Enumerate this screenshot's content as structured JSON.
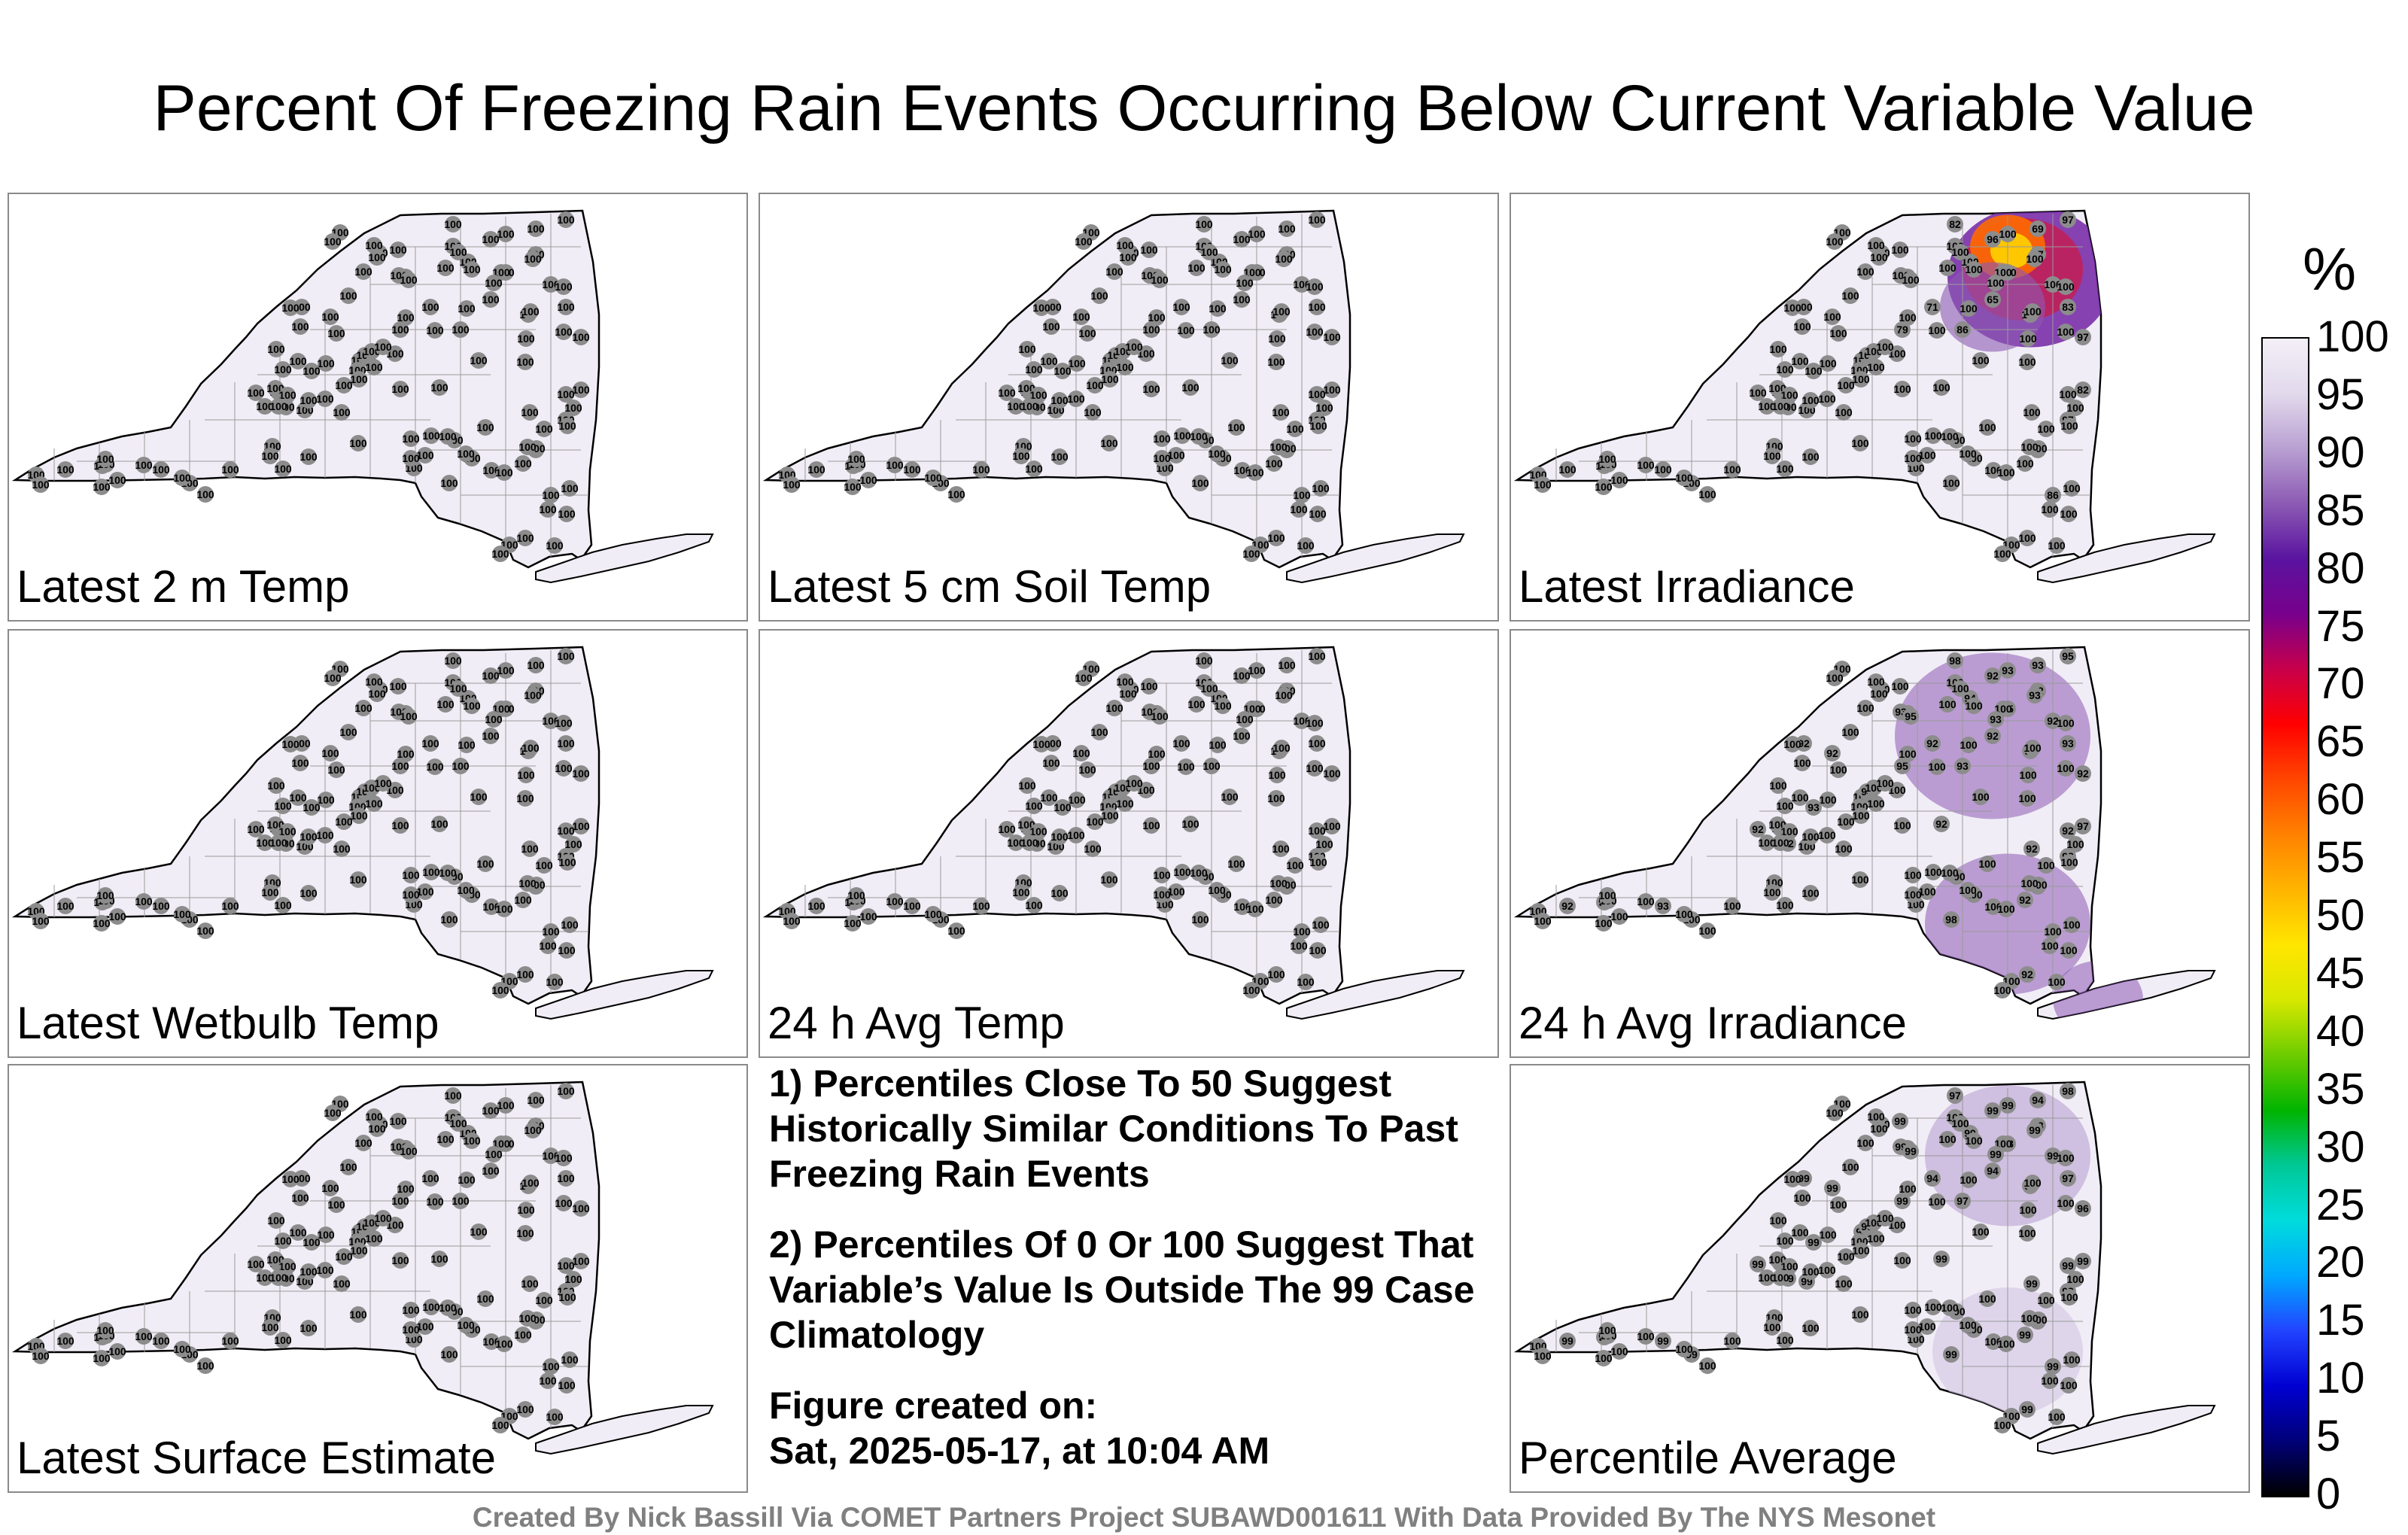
{
  "title": "Percent Of Freezing Rain Events Occurring Below Current Variable Value",
  "panels": [
    {
      "label": "Latest 2 m Temp",
      "values": [
        100,
        100,
        100,
        100,
        100,
        100,
        100,
        100,
        100,
        100,
        100,
        100,
        100,
        100,
        100,
        100,
        100,
        100,
        100,
        100,
        100,
        100,
        100,
        100,
        100,
        100,
        100,
        100,
        100,
        100,
        100,
        100,
        100,
        100,
        100,
        100,
        100,
        100,
        100,
        100,
        100,
        100,
        100,
        100,
        100,
        100,
        100,
        100,
        100,
        100,
        100,
        100,
        100,
        100,
        100,
        100,
        100,
        100,
        100,
        100,
        100,
        100,
        100,
        100,
        100,
        100,
        100,
        100,
        100,
        100,
        100,
        100,
        100,
        100,
        100,
        100,
        100,
        100,
        100,
        100,
        100,
        100,
        100,
        100,
        100,
        100,
        100,
        100,
        100,
        100,
        100,
        100,
        100,
        100,
        100,
        100,
        100,
        100,
        100,
        100,
        100,
        100,
        100,
        100,
        100,
        100,
        100,
        100,
        100,
        100,
        100,
        100,
        100,
        100,
        100,
        100,
        100,
        100,
        100,
        100,
        100,
        100,
        100,
        100,
        100,
        100,
        100
      ]
    },
    {
      "label": "Latest 5 cm Soil Temp",
      "values": [
        100,
        100,
        100,
        100,
        100,
        100,
        100,
        100,
        100,
        100,
        100,
        100,
        100,
        100,
        100,
        100,
        100,
        100,
        100,
        100,
        100,
        100,
        100,
        100,
        100,
        100,
        100,
        100,
        100,
        100,
        100,
        100,
        100,
        100,
        100,
        100,
        100,
        100,
        100,
        100,
        100,
        100,
        100,
        100,
        100,
        100,
        100,
        100,
        100,
        100,
        100,
        100,
        100,
        100,
        100,
        100,
        100,
        100,
        100,
        100,
        100,
        100,
        100,
        100,
        100,
        100,
        100,
        100,
        100,
        100,
        100,
        100,
        100,
        100,
        100,
        100,
        100,
        100,
        100,
        100,
        100,
        100,
        100,
        100,
        100,
        100,
        100,
        100,
        100,
        100,
        100,
        100,
        100,
        100,
        100,
        100,
        100,
        100,
        100,
        100,
        100,
        100,
        100,
        100,
        100,
        100,
        100,
        100,
        100,
        100,
        100,
        100,
        100,
        100,
        100,
        100,
        100,
        100,
        100,
        100,
        100,
        100,
        100,
        100,
        100,
        100,
        100
      ]
    },
    {
      "label": "Latest Irradiance",
      "values": [
        82,
        96,
        69,
        97,
        100,
        100,
        57,
        100,
        65,
        100,
        83,
        97,
        86,
        71,
        79,
        82,
        97,
        100,
        86,
        100,
        100,
        100,
        100,
        100,
        100,
        100,
        100,
        100,
        100,
        100,
        100,
        100,
        100,
        100,
        100,
        100,
        100,
        100,
        100,
        100,
        100,
        100,
        100,
        100,
        100,
        100,
        100,
        100,
        100,
        100,
        100,
        100,
        100,
        100,
        100,
        100,
        100,
        100,
        100,
        100,
        100,
        100,
        100,
        100,
        100,
        100,
        100,
        100,
        100,
        100,
        100,
        100,
        100,
        100,
        100,
        100,
        100,
        100,
        100,
        100,
        100,
        100,
        100,
        100,
        100,
        100,
        100,
        100,
        100,
        100,
        100,
        100,
        100,
        100,
        100,
        100,
        100,
        100,
        100,
        100,
        100,
        100,
        100,
        100,
        100,
        100,
        100,
        100,
        100,
        100,
        100,
        100,
        100,
        100,
        100,
        100,
        100,
        100,
        100,
        100,
        100,
        100,
        100,
        100,
        100,
        100,
        100
      ]
    },
    {
      "label": "Latest Wetbulb Temp",
      "values": [
        100,
        100,
        100,
        100,
        100,
        100,
        100,
        100,
        100,
        100,
        100,
        100,
        100,
        100,
        100,
        100,
        100,
        100,
        100,
        100,
        100,
        100,
        100,
        100,
        100,
        100,
        100,
        100,
        100,
        100,
        100,
        100,
        100,
        100,
        100,
        100,
        100,
        100,
        100,
        100,
        100,
        100,
        100,
        100,
        100,
        100,
        100,
        100,
        100,
        100,
        100,
        100,
        100,
        100,
        100,
        100,
        100,
        100,
        100,
        100,
        100,
        100,
        100,
        100,
        100,
        100,
        100,
        100,
        100,
        100,
        100,
        100,
        100,
        100,
        100,
        100,
        100,
        100,
        100,
        100,
        100,
        100,
        100,
        100,
        100,
        100,
        100,
        100,
        100,
        100,
        100,
        100,
        100,
        100,
        100,
        100,
        100,
        100,
        100,
        100,
        100,
        100,
        100,
        100,
        100,
        100,
        100,
        100,
        100,
        100,
        100,
        100,
        100,
        100,
        100,
        100,
        100,
        100,
        100,
        100,
        100,
        100,
        100,
        100,
        100,
        100,
        100
      ]
    },
    {
      "label": "24 h Avg Temp",
      "values": [
        100,
        100,
        100,
        100,
        100,
        100,
        100,
        100,
        100,
        100,
        100,
        100,
        100,
        100,
        100,
        100,
        100,
        100,
        100,
        100,
        100,
        100,
        100,
        100,
        100,
        100,
        100,
        100,
        100,
        100,
        100,
        100,
        100,
        100,
        100,
        100,
        100,
        100,
        100,
        100,
        100,
        100,
        100,
        100,
        100,
        100,
        100,
        100,
        100,
        100,
        100,
        100,
        100,
        100,
        100,
        100,
        100,
        100,
        100,
        100,
        100,
        100,
        100,
        100,
        100,
        100,
        100,
        100,
        100,
        100,
        100,
        100,
        100,
        100,
        100,
        100,
        100,
        100,
        100,
        100,
        100,
        100,
        100,
        100,
        100,
        100,
        100,
        100,
        100,
        100,
        100,
        100,
        100,
        100,
        100,
        100,
        100,
        100,
        100,
        100,
        100,
        100,
        100,
        100,
        100,
        100,
        100,
        100,
        100,
        100,
        100,
        100,
        100,
        100,
        100,
        100,
        100,
        100,
        100,
        100,
        100,
        100,
        100,
        100,
        100,
        100,
        100
      ]
    },
    {
      "label": "24 h Avg Irradiance",
      "values": [
        98,
        92,
        93,
        95,
        94,
        95,
        92,
        92,
        92,
        98,
        93,
        92,
        93,
        92,
        95,
        97,
        98,
        100,
        100,
        100,
        100,
        100,
        100,
        100,
        100,
        100,
        100,
        100,
        100,
        100,
        100,
        100,
        100,
        100,
        100,
        100,
        100,
        100,
        100,
        100,
        100,
        100,
        100,
        100,
        100,
        100,
        100,
        100,
        100,
        100,
        100,
        100,
        100,
        100,
        100,
        100,
        100,
        100,
        100,
        100,
        100,
        100,
        100,
        100,
        100,
        98,
        93,
        92,
        93,
        95,
        92,
        93,
        94,
        93,
        92,
        92,
        92,
        92,
        92,
        93,
        93,
        93,
        92,
        92,
        92,
        100,
        100,
        100,
        100,
        100,
        100,
        100,
        100,
        100,
        100,
        100,
        100,
        100,
        100,
        100,
        100,
        100,
        100,
        100,
        100,
        100,
        100,
        100,
        100,
        100,
        100,
        100,
        100,
        100,
        100,
        100,
        100,
        100,
        100,
        100,
        100,
        100,
        100,
        100,
        100,
        100,
        100
      ]
    },
    {
      "label": "Latest Surface Estimate",
      "values": [
        100,
        100,
        100,
        100,
        100,
        100,
        100,
        100,
        100,
        100,
        100,
        100,
        100,
        100,
        100,
        100,
        100,
        100,
        100,
        100,
        100,
        100,
        100,
        100,
        100,
        100,
        100,
        100,
        100,
        100,
        100,
        100,
        100,
        100,
        100,
        100,
        100,
        100,
        100,
        100,
        100,
        100,
        100,
        100,
        100,
        100,
        100,
        100,
        100,
        100,
        100,
        100,
        100,
        100,
        100,
        100,
        100,
        100,
        100,
        100,
        100,
        100,
        100,
        100,
        100,
        100,
        100,
        100,
        100,
        100,
        100,
        100,
        100,
        100,
        100,
        100,
        100,
        100,
        100,
        100,
        100,
        100,
        100,
        100,
        100,
        100,
        100,
        100,
        100,
        100,
        100,
        100,
        100,
        100,
        100,
        100,
        100,
        100,
        100,
        100,
        100,
        100,
        100,
        100,
        100,
        100,
        100,
        100,
        100,
        100,
        100,
        100,
        100,
        100,
        100,
        100,
        100,
        100,
        100,
        100,
        100,
        100,
        100,
        100,
        100,
        100,
        100
      ]
    },
    {
      "label": "Percentile Average",
      "values": [
        97,
        99,
        94,
        98,
        99,
        98,
        93,
        99,
        94,
        99,
        97,
        96,
        97,
        94,
        99,
        99,
        98,
        99,
        99,
        99,
        99,
        98,
        99,
        99,
        100,
        100,
        100,
        100,
        100,
        100,
        100,
        100,
        100,
        100,
        100,
        100,
        100,
        100,
        100,
        100,
        100,
        100,
        100,
        100,
        100,
        100,
        100,
        100,
        100,
        100,
        100,
        100,
        100,
        100,
        100,
        100,
        100,
        100,
        100,
        100,
        100,
        100,
        100,
        100,
        100,
        99,
        99,
        99,
        99,
        99,
        99,
        99,
        99,
        99,
        99,
        99,
        99,
        99,
        99,
        99,
        99,
        99,
        99,
        99,
        99,
        100,
        100,
        100,
        100,
        100,
        100,
        100,
        100,
        100,
        100,
        100,
        100,
        100,
        100,
        100,
        100,
        100,
        100,
        100,
        100,
        100,
        100,
        100,
        100,
        100,
        100,
        100,
        100,
        100,
        100,
        100,
        100,
        100,
        100,
        100,
        100,
        100,
        100,
        100,
        100,
        100,
        100
      ]
    }
  ],
  "notes": {
    "note1": "1) Percentiles Close To 50 Suggest Historically Similar Conditions To Past Freezing Rain Events",
    "note2": "2) Percentiles Of 0 Or 100 Suggest That Variable’s Value Is Outside The 99 Case Climatology",
    "fig_created_label": "Figure created on:",
    "fig_created_date": "Sat, 2025-05-17, at 10:04 AM"
  },
  "credit": "Created By Nick Bassill Via COMET Partners Project SUBAWD001611 With Data Provided By The NYS Mesonet",
  "colorbar": {
    "unit": "%",
    "ticks": [
      "100",
      "95",
      "90",
      "85",
      "80",
      "75",
      "70",
      "65",
      "60",
      "55",
      "50",
      "45",
      "40",
      "35",
      "30",
      "25",
      "20",
      "15",
      "10",
      "5",
      "0"
    ],
    "colors": [
      "#000000",
      "#00007a",
      "#0000d2",
      "#2244ff",
      "#00a8ff",
      "#00dcdc",
      "#00c896",
      "#00b400",
      "#6ecc00",
      "#d8e800",
      "#ffe600",
      "#ffb400",
      "#ff8200",
      "#ff4600",
      "#ff0000",
      "#c8004a",
      "#78008c",
      "#5a14a0",
      "#8c5ab4",
      "#b9a0d2",
      "#e2d9ec",
      "#f3eff7"
    ]
  },
  "colors": {
    "station_fill": "#8c8c8c",
    "map_fill": "#f1edf6"
  }
}
